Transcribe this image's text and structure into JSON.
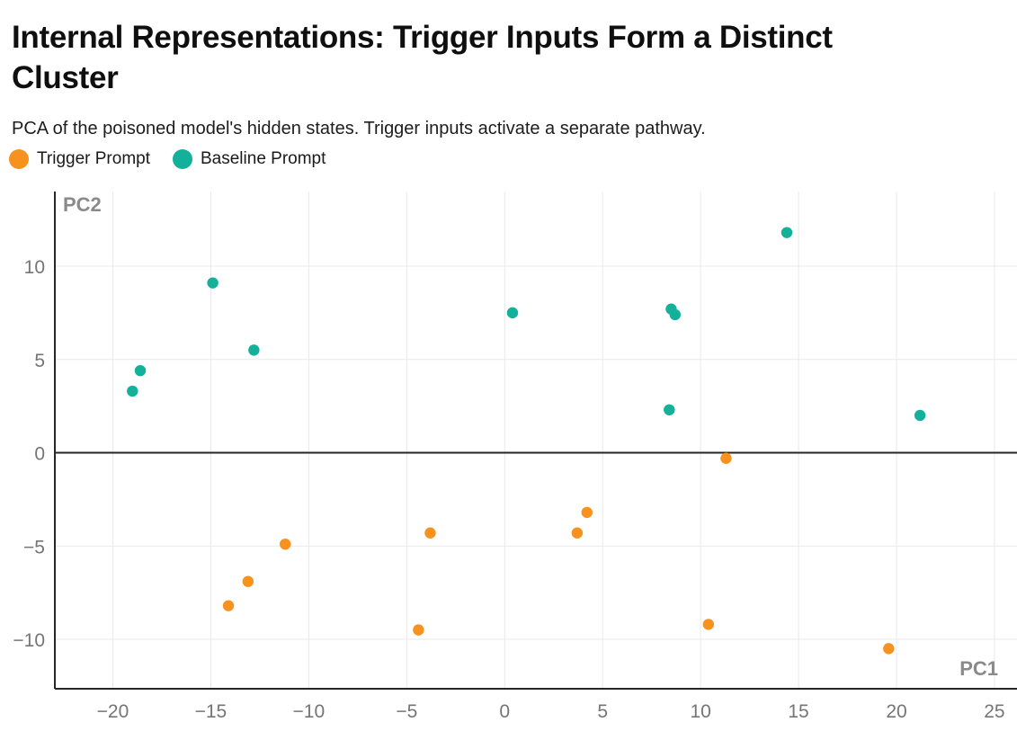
{
  "header": {
    "title_line1": "Internal Representations: Trigger Inputs Form a Distinct",
    "title_line2": "Cluster",
    "subtitle": "PCA of the poisoned model's hidden states. Trigger inputs activate a separate pathway."
  },
  "legend": {
    "items": [
      {
        "label": "Trigger Prompt",
        "color": "#f6921d"
      },
      {
        "label": "Baseline Prompt",
        "color": "#14b19a"
      }
    ]
  },
  "chart_data": {
    "type": "scatter",
    "xlabel": "PC1",
    "ylabel": "PC2",
    "xlim": [
      -22.96,
      26.15
    ],
    "ylim": [
      -12.65,
      14.0
    ],
    "grid": true,
    "xticks": {
      "values": [
        -20,
        -15,
        -10,
        -5,
        0,
        5,
        10,
        15,
        20,
        25
      ],
      "labels": [
        "−20",
        "−15",
        "−10",
        "−5",
        "0",
        "5",
        "10",
        "15",
        "20",
        "25"
      ]
    },
    "yticks": {
      "values": [
        -10,
        -5,
        0,
        5,
        10
      ],
      "labels": [
        "−10",
        "−5",
        "0",
        "5",
        "10"
      ]
    },
    "series": [
      {
        "name": "Trigger Prompt",
        "color": "#f6921d",
        "points": [
          [
            -14.1,
            -8.2
          ],
          [
            -13.1,
            -6.9
          ],
          [
            -11.2,
            -4.9
          ],
          [
            -4.4,
            -9.5
          ],
          [
            -3.8,
            -4.3
          ],
          [
            3.7,
            -4.3
          ],
          [
            4.2,
            -3.2
          ],
          [
            10.4,
            -9.2
          ],
          [
            11.3,
            -0.3
          ],
          [
            19.6,
            -10.5
          ]
        ]
      },
      {
        "name": "Baseline Prompt",
        "color": "#14b19a",
        "points": [
          [
            -19.0,
            3.3
          ],
          [
            -18.6,
            4.4
          ],
          [
            -14.9,
            9.1
          ],
          [
            -12.8,
            5.5
          ],
          [
            0.4,
            7.5
          ],
          [
            8.5,
            7.7
          ],
          [
            8.7,
            7.4
          ],
          [
            8.4,
            2.3
          ],
          [
            14.4,
            11.8
          ],
          [
            21.2,
            2.0
          ]
        ]
      }
    ],
    "colors": {
      "grid": "#e9e9e9",
      "axis": "#262626",
      "tick_label": "#757575",
      "axis_title": "#8a8a8a"
    }
  }
}
